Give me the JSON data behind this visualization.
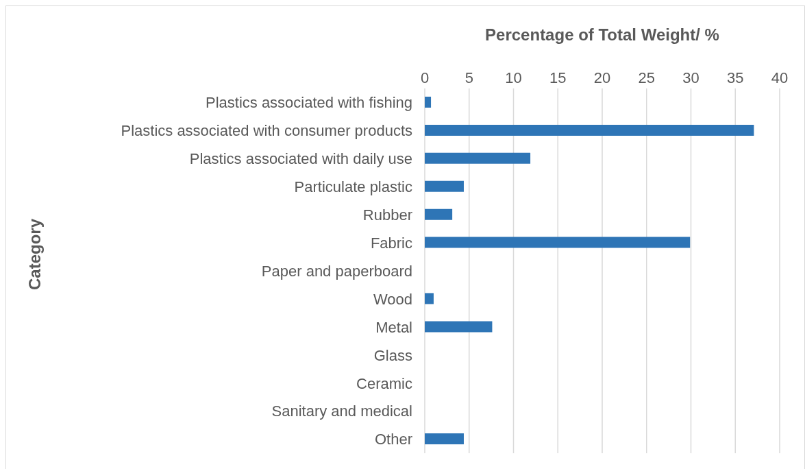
{
  "chart_data": {
    "type": "bar",
    "orientation": "horizontal",
    "xlabel": "Percentage of Total Weight/ %",
    "ylabel": "Category",
    "categories": [
      "Plastics associated with fishing",
      "Plastics associated with consumer products",
      "Plastics associated with daily use",
      "Particulate plastic",
      "Rubber",
      "Fabric",
      "Paper and paperboard",
      "Wood",
      "Metal",
      "Glass",
      "Ceramic",
      "Sanitary and medical",
      "Other"
    ],
    "values": [
      0.7,
      37.1,
      11.9,
      4.4,
      3.1,
      29.9,
      0,
      1.0,
      7.6,
      0,
      0,
      0,
      4.4
    ],
    "color": "#2e75b6",
    "xlim": [
      0,
      40
    ],
    "xticks": [
      0,
      5,
      10,
      15,
      20,
      25,
      30,
      35,
      40
    ],
    "grid": "x"
  }
}
